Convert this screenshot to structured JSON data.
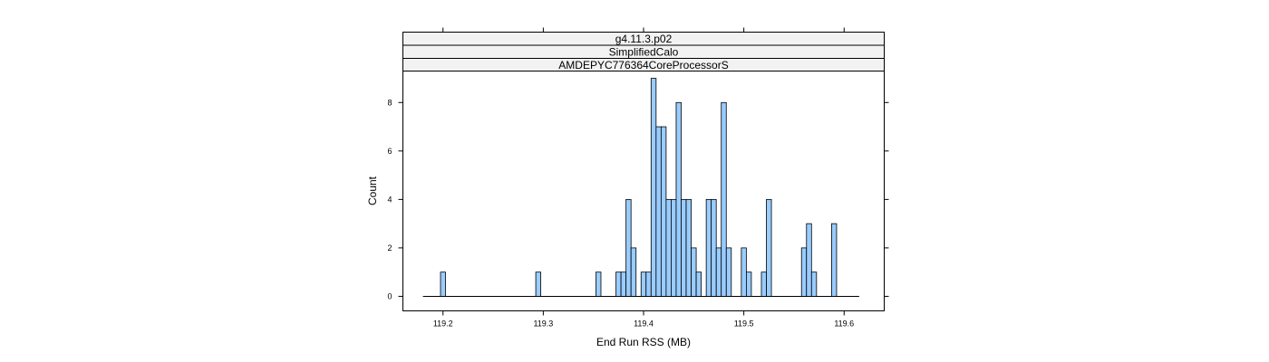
{
  "chart_data": {
    "type": "bar",
    "strips": [
      "g4.11.3.p02",
      "SimplifiedCalo",
      "AMDEPYC776364CoreProcessorS"
    ],
    "xlabel": "End Run RSS (MB)",
    "ylabel": "Count",
    "xlim": [
      119.16,
      119.64
    ],
    "ylim": [
      -0.6,
      9.3
    ],
    "x_ticks": [
      119.2,
      119.3,
      119.4,
      119.5,
      119.6
    ],
    "y_ticks": [
      0,
      2,
      4,
      6,
      8
    ],
    "bin_width": 0.005,
    "x_range": [
      119.18,
      119.615
    ],
    "bins": [
      {
        "x": 119.2,
        "count": 1
      },
      {
        "x": 119.295,
        "count": 1
      },
      {
        "x": 119.355,
        "count": 1
      },
      {
        "x": 119.375,
        "count": 1
      },
      {
        "x": 119.38,
        "count": 1
      },
      {
        "x": 119.385,
        "count": 4
      },
      {
        "x": 119.39,
        "count": 2
      },
      {
        "x": 119.4,
        "count": 1
      },
      {
        "x": 119.405,
        "count": 1
      },
      {
        "x": 119.41,
        "count": 9
      },
      {
        "x": 119.415,
        "count": 7
      },
      {
        "x": 119.42,
        "count": 7
      },
      {
        "x": 119.425,
        "count": 4
      },
      {
        "x": 119.43,
        "count": 4
      },
      {
        "x": 119.435,
        "count": 8
      },
      {
        "x": 119.44,
        "count": 4
      },
      {
        "x": 119.445,
        "count": 4
      },
      {
        "x": 119.45,
        "count": 2
      },
      {
        "x": 119.455,
        "count": 1
      },
      {
        "x": 119.465,
        "count": 4
      },
      {
        "x": 119.47,
        "count": 4
      },
      {
        "x": 119.475,
        "count": 2
      },
      {
        "x": 119.48,
        "count": 8
      },
      {
        "x": 119.485,
        "count": 2
      },
      {
        "x": 119.5,
        "count": 2
      },
      {
        "x": 119.505,
        "count": 1
      },
      {
        "x": 119.52,
        "count": 1
      },
      {
        "x": 119.525,
        "count": 4
      },
      {
        "x": 119.56,
        "count": 2
      },
      {
        "x": 119.565,
        "count": 3
      },
      {
        "x": 119.57,
        "count": 1
      },
      {
        "x": 119.59,
        "count": 3
      }
    ],
    "colors": {
      "bar_fill": "#99ccff",
      "strip_fill": "#f2f2f2"
    },
    "grid": false
  }
}
